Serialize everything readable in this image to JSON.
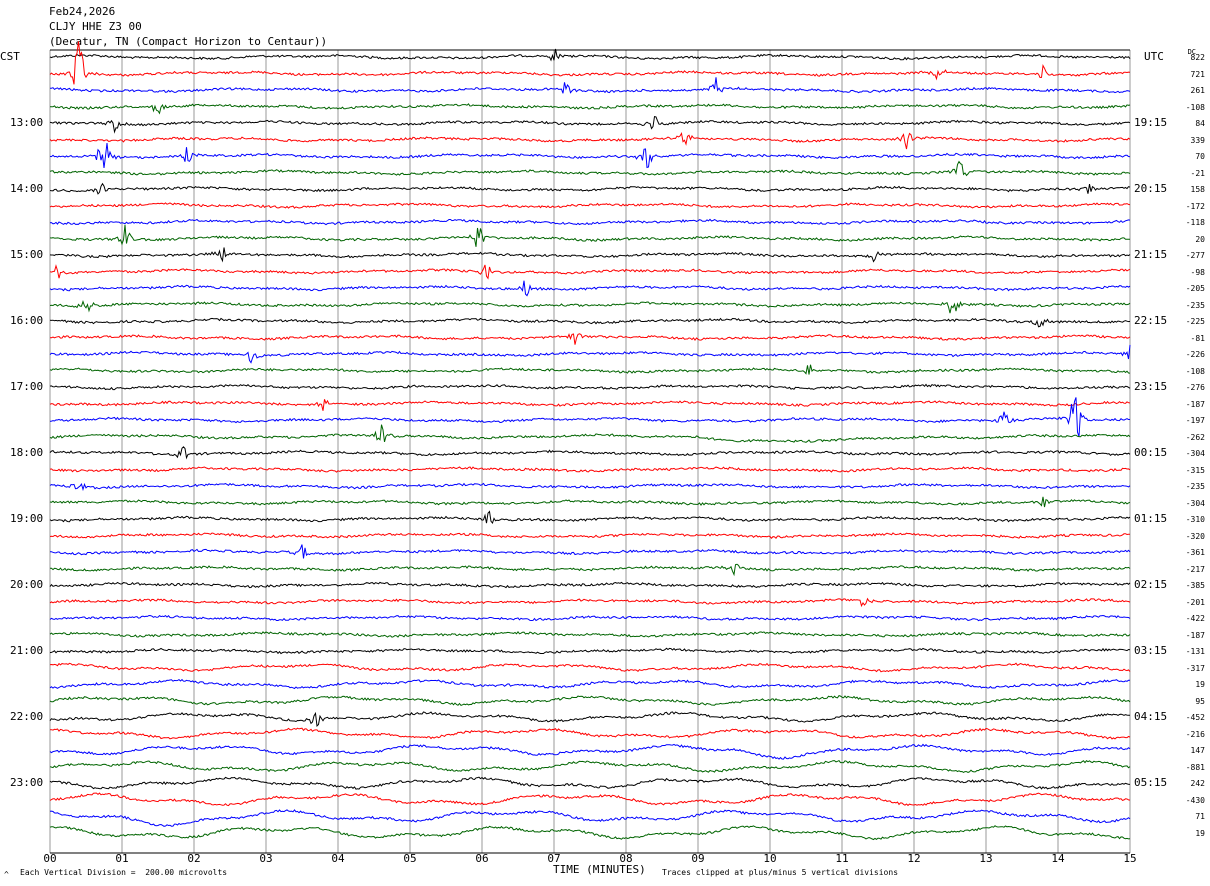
{
  "header": {
    "date": "Feb24,2026",
    "station": "CLJY HHE Z3 00",
    "location": "(Decatur, TN (Compact Horizon to Centaur))"
  },
  "left_zone_label": "CST",
  "right_zone_label": "UTC",
  "dc_label": "DC",
  "footer": {
    "scale_note": "Each Vertical Division =  200.00 microvolts",
    "xlabel": "TIME (MINUTES)",
    "clip_note": "Traces clipped at plus/minus 5 vertical divisions"
  },
  "colors": {
    "black": "#000000",
    "red": "#ff0000",
    "blue": "#0000ff",
    "green": "#006400",
    "grid": "#808080"
  },
  "chart_data": {
    "type": "line",
    "title": "CLJY HHE Z3 00",
    "xlabel": "TIME (MINUTES)",
    "xlim": [
      0,
      15
    ],
    "x_ticks": [
      "00",
      "01",
      "02",
      "03",
      "04",
      "05",
      "06",
      "07",
      "08",
      "09",
      "10",
      "11",
      "12",
      "13",
      "14",
      "15"
    ],
    "trace_minutes": 15,
    "trace_count": 48,
    "trace_color_cycle": [
      "black",
      "red",
      "blue",
      "green"
    ],
    "left_hour_labels": [
      "13:00",
      "14:00",
      "15:00",
      "16:00",
      "17:00",
      "18:00",
      "19:00",
      "20:00",
      "21:00",
      "22:00",
      "23:00"
    ],
    "right_hour_labels": [
      "19:15",
      "20:15",
      "21:15",
      "22:15",
      "23:15",
      "00:15",
      "01:15",
      "02:15",
      "03:15",
      "04:15",
      "05:15"
    ],
    "dc_offsets": [
      822,
      721,
      261,
      -108,
      84,
      339,
      70,
      -21,
      158,
      -172,
      -118,
      20,
      -277,
      -98,
      -205,
      -235,
      -225,
      -81,
      -226,
      -108,
      -276,
      -187,
      -197,
      -262,
      -304,
      -315,
      -235,
      -304,
      -310,
      -320,
      -361,
      -217,
      -385,
      -201,
      -422,
      -187,
      -131,
      -317,
      19,
      95,
      -452,
      -216,
      147,
      -881,
      242,
      -430,
      71,
      19
    ],
    "events": [
      {
        "trace": 0,
        "minute": 7.0,
        "amp": 0.6
      },
      {
        "trace": 1,
        "minute": 0.4,
        "amp": 2.6
      },
      {
        "trace": 1,
        "minute": 12.3,
        "amp": 0.7
      },
      {
        "trace": 1,
        "minute": 13.8,
        "amp": 0.6
      },
      {
        "trace": 2,
        "minute": 9.25,
        "amp": 0.8
      },
      {
        "trace": 2,
        "minute": 7.15,
        "amp": 0.6
      },
      {
        "trace": 3,
        "minute": 1.5,
        "amp": 0.7
      },
      {
        "trace": 4,
        "minute": 0.9,
        "amp": 0.6
      },
      {
        "trace": 4,
        "minute": 8.4,
        "amp": 0.6
      },
      {
        "trace": 5,
        "minute": 8.8,
        "amp": 0.6
      },
      {
        "trace": 5,
        "minute": 11.9,
        "amp": 0.7
      },
      {
        "trace": 6,
        "minute": 0.75,
        "amp": 1.6
      },
      {
        "trace": 6,
        "minute": 8.3,
        "amp": 1.4
      },
      {
        "trace": 6,
        "minute": 1.9,
        "amp": 0.7
      },
      {
        "trace": 7,
        "minute": 12.65,
        "amp": 0.9
      },
      {
        "trace": 8,
        "minute": 0.7,
        "amp": 0.6
      },
      {
        "trace": 8,
        "minute": 14.45,
        "amp": 0.6
      },
      {
        "trace": 11,
        "minute": 1.05,
        "amp": 1.0
      },
      {
        "trace": 11,
        "minute": 5.95,
        "amp": 1.3
      },
      {
        "trace": 12,
        "minute": 2.4,
        "amp": 0.6
      },
      {
        "trace": 12,
        "minute": 11.45,
        "amp": 0.6
      },
      {
        "trace": 13,
        "minute": 0.1,
        "amp": 0.7
      },
      {
        "trace": 13,
        "minute": 6.05,
        "amp": 0.9
      },
      {
        "trace": 14,
        "minute": 6.6,
        "amp": 0.7
      },
      {
        "trace": 15,
        "minute": 0.5,
        "amp": 1.0
      },
      {
        "trace": 15,
        "minute": 12.55,
        "amp": 1.2
      },
      {
        "trace": 16,
        "minute": 13.75,
        "amp": 0.6
      },
      {
        "trace": 17,
        "minute": 7.3,
        "amp": 0.6
      },
      {
        "trace": 18,
        "minute": 2.8,
        "amp": 0.6
      },
      {
        "trace": 18,
        "minute": 15.0,
        "amp": 0.6
      },
      {
        "trace": 19,
        "minute": 10.55,
        "amp": 0.6
      },
      {
        "trace": 21,
        "minute": 3.8,
        "amp": 0.5
      },
      {
        "trace": 22,
        "minute": 14.25,
        "amp": 2.8
      },
      {
        "trace": 22,
        "minute": 13.25,
        "amp": 0.8
      },
      {
        "trace": 23,
        "minute": 4.6,
        "amp": 1.0
      },
      {
        "trace": 24,
        "minute": 1.85,
        "amp": 0.6
      },
      {
        "trace": 26,
        "minute": 0.4,
        "amp": 0.6
      },
      {
        "trace": 27,
        "minute": 13.8,
        "amp": 0.5
      },
      {
        "trace": 28,
        "minute": 6.1,
        "amp": 0.6
      },
      {
        "trace": 30,
        "minute": 3.5,
        "amp": 0.6
      },
      {
        "trace": 31,
        "minute": 9.5,
        "amp": 0.5
      },
      {
        "trace": 33,
        "minute": 11.3,
        "amp": 0.5
      },
      {
        "trace": 40,
        "minute": 3.7,
        "amp": 0.6
      }
    ],
    "long_period_swells": [
      {
        "trace": 23,
        "minute_start": 9.0,
        "minute_end": 12.0,
        "amp": 0.6
      },
      {
        "trace": 42,
        "minute_start": 9.5,
        "minute_end": 10.5,
        "amp": 0.6
      },
      {
        "trace": 46,
        "minute_start": 1.0,
        "minute_end": 3.0,
        "amp": 0.6
      }
    ]
  }
}
